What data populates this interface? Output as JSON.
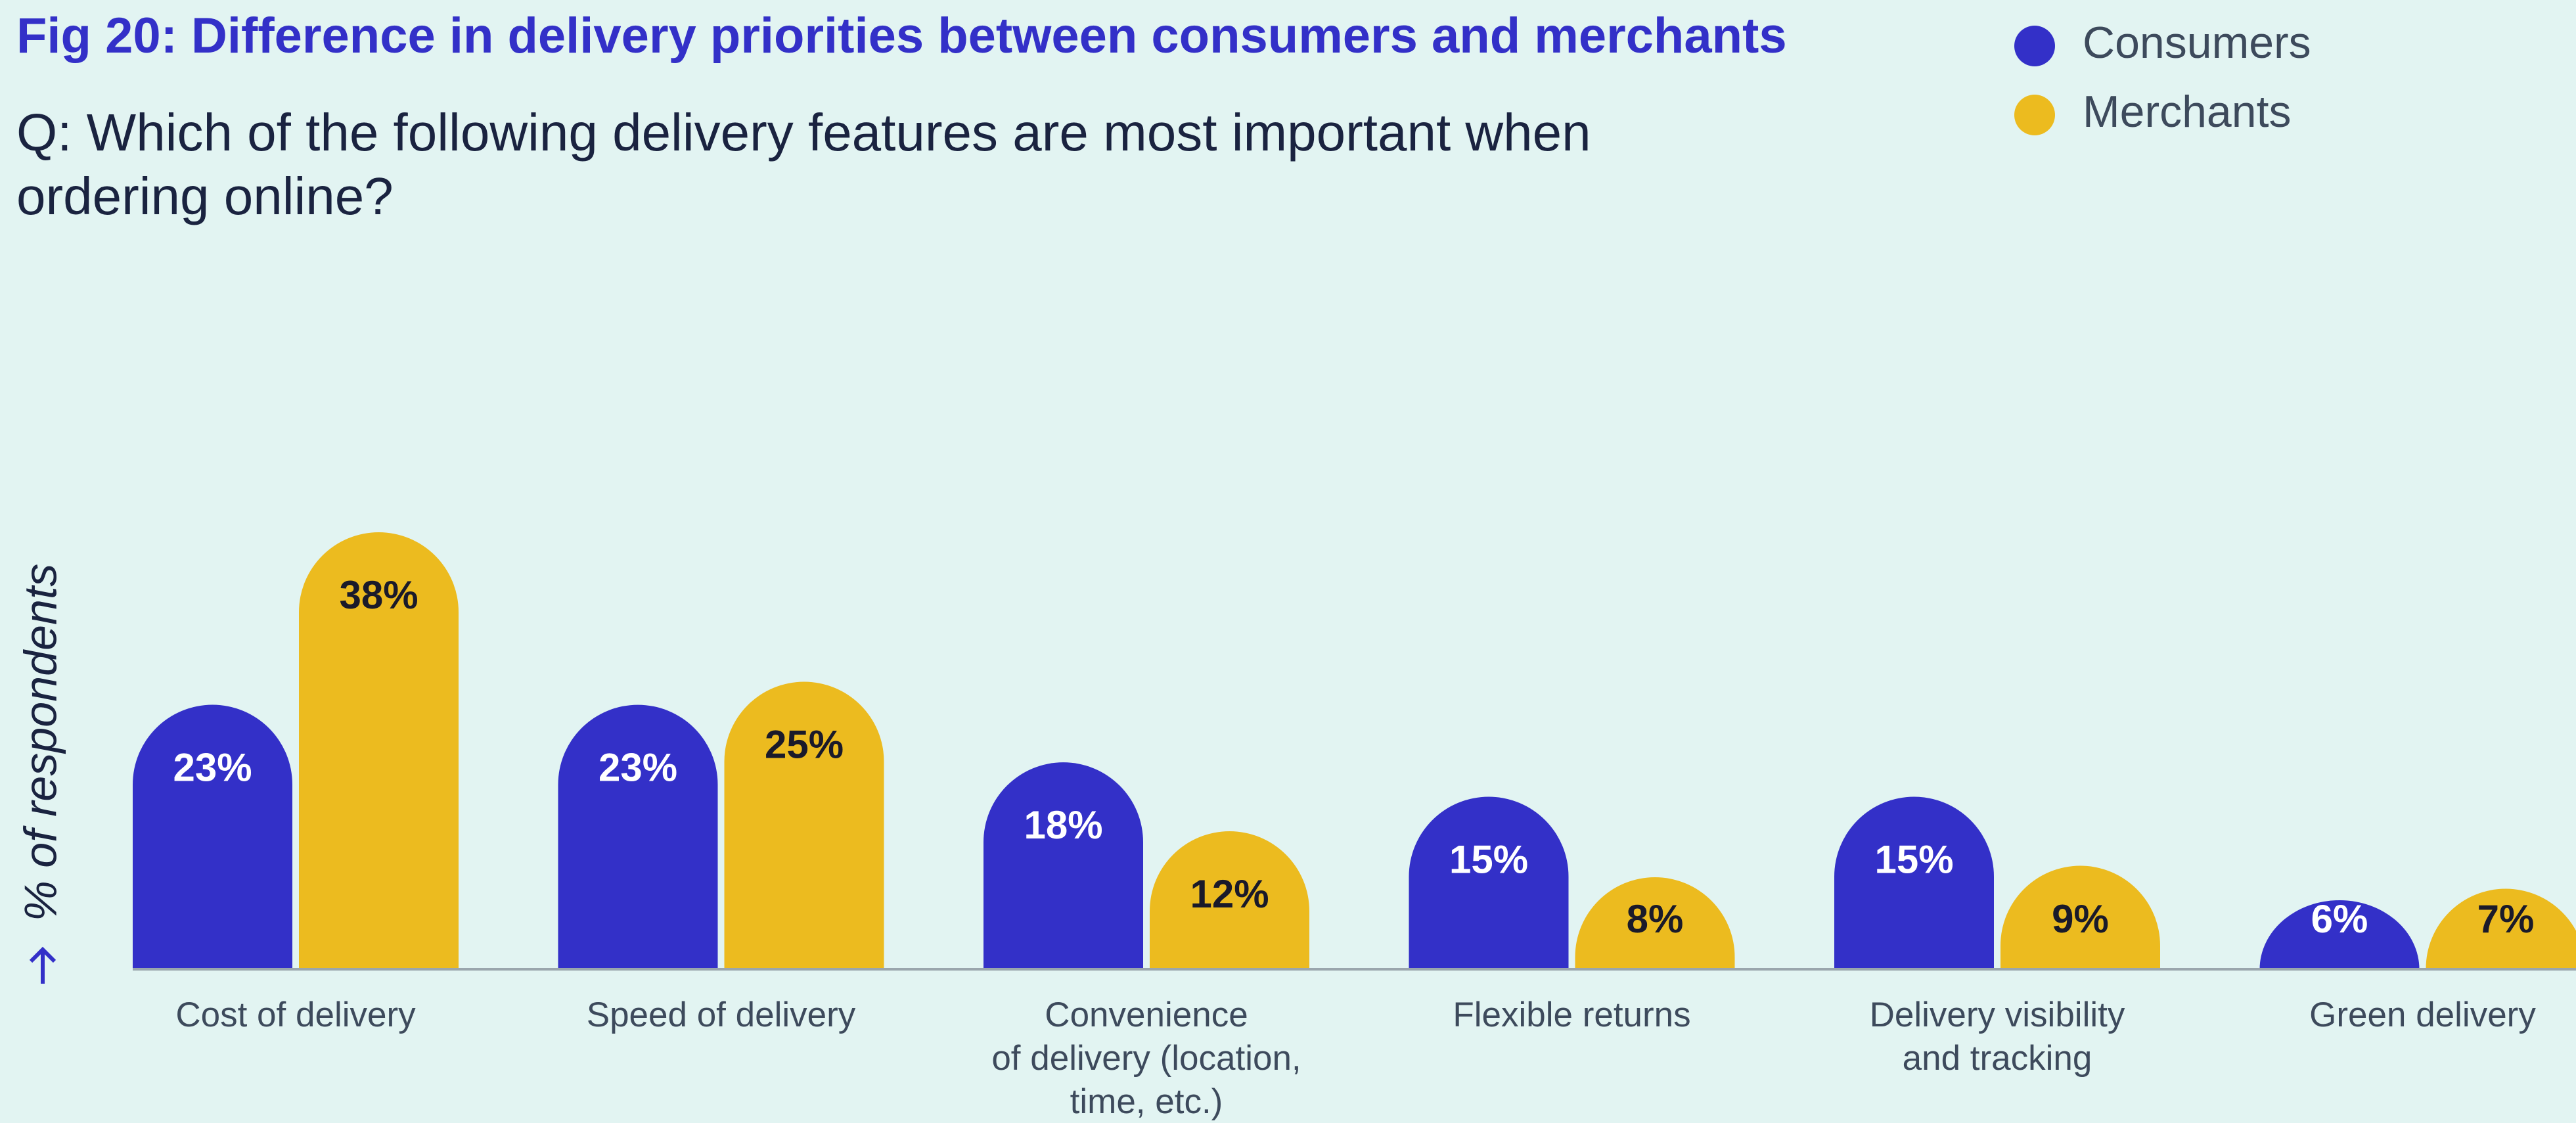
{
  "chart_data": {
    "type": "bar",
    "title": "Fig 20: Difference in delivery priorities between consumers and merchants",
    "subtitle": [
      "Q: Which of the following delivery features are most important when",
      "ordering online?"
    ],
    "y_label": "% of respondents",
    "categories": [
      [
        "Cost of delivery"
      ],
      [
        "Speed of delivery"
      ],
      [
        "Convenience",
        "of delivery (location,",
        "time, etc.)"
      ],
      [
        "Flexible returns"
      ],
      [
        "Delivery visibility",
        "and tracking"
      ],
      [
        "Green delivery"
      ]
    ],
    "series": [
      {
        "name": "Consumers",
        "color": "#3330c8",
        "label_color": "#ffffff",
        "values": [
          23,
          23,
          18,
          15,
          15,
          6
        ],
        "value_labels": [
          "23%",
          "23%",
          "18%",
          "15%",
          "15%",
          "6%"
        ]
      },
      {
        "name": "Merchants",
        "color": "#ecbb1f",
        "label_color": "#1a1a2a",
        "values": [
          38,
          25,
          12,
          8,
          9,
          7
        ],
        "value_labels": [
          "38%",
          "25%",
          "12%",
          "8%",
          "9%",
          "7%"
        ]
      }
    ],
    "ylim": [
      0,
      40
    ]
  }
}
